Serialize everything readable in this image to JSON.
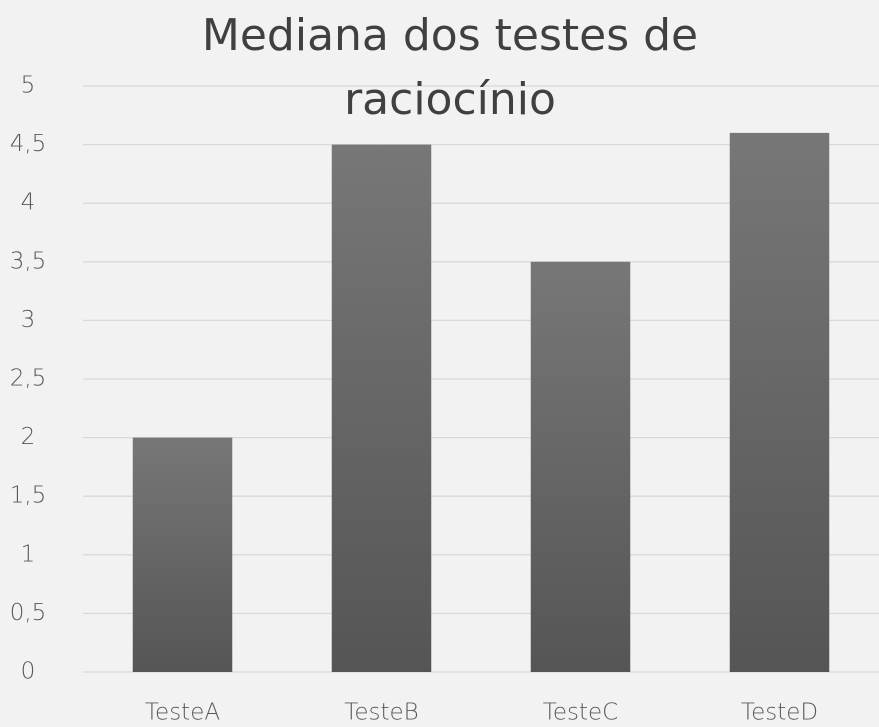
{
  "chart_data": {
    "type": "bar",
    "title": "Mediana dos testes de raciocínio",
    "categories": [
      "TesteA",
      "TesteB",
      "TesteC",
      "TesteD"
    ],
    "values": [
      2,
      4.5,
      3.5,
      4.6
    ],
    "color": "#555555",
    "ylim": [
      0,
      5
    ],
    "yticks": [
      0,
      {
        "value": 0.5,
        "label": "0,5"
      },
      1,
      {
        "value": 1.5,
        "label": "1,5"
      },
      2,
      {
        "value": 2.5,
        "label": "2,5"
      },
      3,
      {
        "value": 3.5,
        "label": "3,5"
      },
      4,
      {
        "value": 4.5,
        "label": "4,5"
      },
      5
    ],
    "grid": true
  }
}
